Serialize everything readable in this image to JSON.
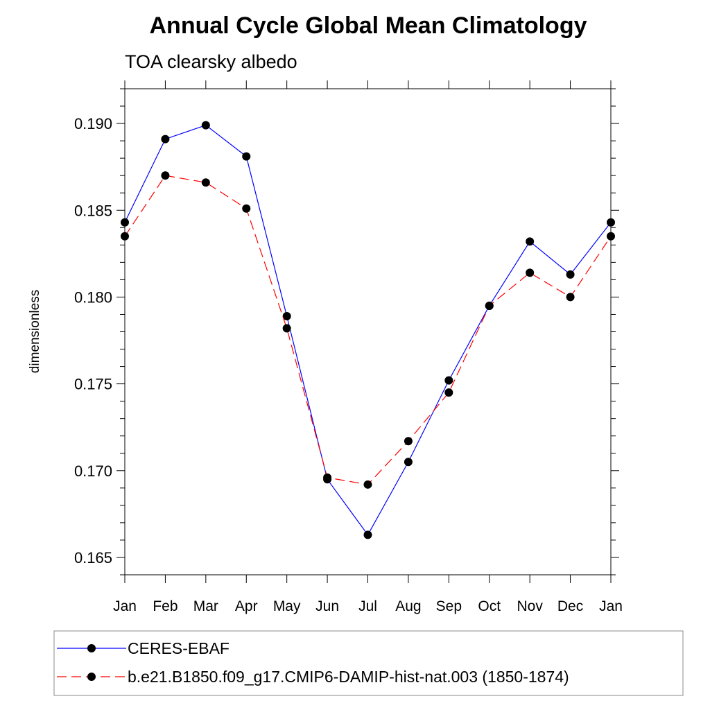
{
  "chart_data": {
    "type": "line",
    "title": "Annual Cycle Global Mean Climatology",
    "subtitle": "TOA clearsky albedo",
    "xlabel": "",
    "ylabel": "dimensionless",
    "categories": [
      "Jan",
      "Feb",
      "Mar",
      "Apr",
      "May",
      "Jun",
      "Jul",
      "Aug",
      "Sep",
      "Oct",
      "Nov",
      "Dec",
      "Jan"
    ],
    "ylim": [
      0.164,
      0.192
    ],
    "yticks": [
      "0.165",
      "0.170",
      "0.175",
      "0.180",
      "0.185",
      "0.190"
    ],
    "grid": false,
    "legend_position": "bottom",
    "series": [
      {
        "name": "CERES-EBAF",
        "color": "#0000ff",
        "line_style": "solid",
        "marker": "filled-circle",
        "values": [
          0.1843,
          0.1891,
          0.1899,
          0.1881,
          0.1789,
          0.1695,
          0.1663,
          0.1705,
          0.1752,
          0.1795,
          0.1832,
          0.1813,
          0.1843
        ]
      },
      {
        "name": "b.e21.B1850.f09_g17.CMIP6-DAMIP-hist-nat.003 (1850-1874)",
        "color": "#ff0000",
        "line_style": "dashed",
        "marker": "filled-circle",
        "values": [
          0.1835,
          0.187,
          0.1866,
          0.1851,
          0.1782,
          0.1696,
          0.1692,
          0.1717,
          0.1745,
          0.1795,
          0.1814,
          0.18,
          0.1835
        ]
      }
    ]
  }
}
